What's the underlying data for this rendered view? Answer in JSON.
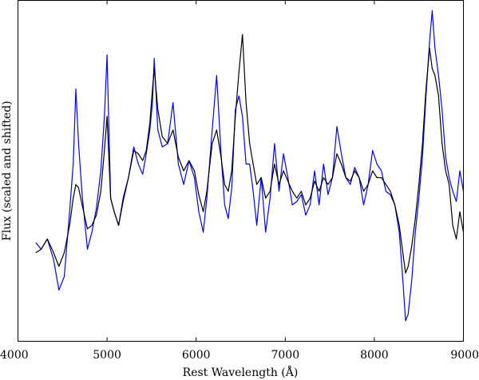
{
  "chart_data": {
    "type": "line",
    "title": "",
    "xlabel": "Rest Wavelength (Å)",
    "ylabel": "Flux (scaled and shifted)",
    "xlim": [
      4000,
      9000
    ],
    "ylim": [
      0,
      1
    ],
    "xticks": [
      4000,
      5000,
      6000,
      7000,
      8000,
      9000
    ],
    "yticks": [],
    "grid": false,
    "legend": "none",
    "colors": {
      "series_a": "#0000ff",
      "series_b": "#000000"
    },
    "series": [
      {
        "color": "#0000ff",
        "x": [
          4200,
          4260,
          4330,
          4400,
          4460,
          4520,
          4580,
          4620,
          4650,
          4680,
          4720,
          4780,
          4830,
          4880,
          4930,
          4970,
          5000,
          5040,
          5080,
          5130,
          5180,
          5240,
          5300,
          5350,
          5400,
          5440,
          5480,
          5510,
          5530,
          5570,
          5620,
          5680,
          5740,
          5800,
          5860,
          5920,
          5980,
          6030,
          6080,
          6120,
          6180,
          6230,
          6280,
          6320,
          6360,
          6400,
          6440,
          6480,
          6520,
          6560,
          6600,
          6640,
          6680,
          6730,
          6780,
          6830,
          6880,
          6930,
          6980,
          7030,
          7080,
          7130,
          7180,
          7230,
          7280,
          7330,
          7380,
          7430,
          7480,
          7530,
          7580,
          7630,
          7680,
          7730,
          7780,
          7830,
          7880,
          7930,
          7980,
          8030,
          8080,
          8130,
          8180,
          8230,
          8280,
          8320,
          8350,
          8380,
          8420,
          8460,
          8500,
          8540,
          8580,
          8620,
          8650,
          8680,
          8720,
          8760,
          8800,
          8840,
          8880,
          8920,
          8960,
          9000
        ],
        "y": [
          0.29,
          0.27,
          0.3,
          0.24,
          0.15,
          0.19,
          0.38,
          0.52,
          0.74,
          0.58,
          0.43,
          0.27,
          0.32,
          0.39,
          0.5,
          0.66,
          0.84,
          0.42,
          0.38,
          0.34,
          0.42,
          0.48,
          0.57,
          0.52,
          0.49,
          0.55,
          0.62,
          0.7,
          0.83,
          0.62,
          0.57,
          0.58,
          0.7,
          0.52,
          0.46,
          0.53,
          0.48,
          0.38,
          0.32,
          0.42,
          0.62,
          0.78,
          0.55,
          0.4,
          0.36,
          0.45,
          0.68,
          0.72,
          0.66,
          0.52,
          0.52,
          0.44,
          0.34,
          0.48,
          0.32,
          0.42,
          0.58,
          0.44,
          0.55,
          0.48,
          0.4,
          0.41,
          0.43,
          0.37,
          0.4,
          0.5,
          0.4,
          0.52,
          0.43,
          0.48,
          0.63,
          0.55,
          0.48,
          0.46,
          0.51,
          0.48,
          0.4,
          0.46,
          0.56,
          0.52,
          0.5,
          0.44,
          0.43,
          0.4,
          0.32,
          0.18,
          0.06,
          0.08,
          0.18,
          0.32,
          0.42,
          0.54,
          0.72,
          0.88,
          0.97,
          0.86,
          0.78,
          0.68,
          0.54,
          0.48,
          0.44,
          0.41,
          0.5,
          0.44
        ]
      },
      {
        "color": "#000000",
        "x": [
          4200,
          4260,
          4330,
          4400,
          4460,
          4520,
          4580,
          4620,
          4650,
          4680,
          4720,
          4780,
          4830,
          4880,
          4930,
          4970,
          5000,
          5040,
          5080,
          5130,
          5180,
          5240,
          5300,
          5350,
          5400,
          5440,
          5480,
          5510,
          5530,
          5570,
          5620,
          5680,
          5740,
          5800,
          5860,
          5920,
          5980,
          6030,
          6080,
          6120,
          6180,
          6230,
          6280,
          6320,
          6360,
          6400,
          6440,
          6480,
          6520,
          6560,
          6600,
          6640,
          6680,
          6730,
          6780,
          6830,
          6880,
          6930,
          6980,
          7030,
          7080,
          7130,
          7180,
          7230,
          7280,
          7330,
          7380,
          7430,
          7480,
          7530,
          7580,
          7630,
          7680,
          7730,
          7780,
          7830,
          7880,
          7930,
          7980,
          8030,
          8080,
          8130,
          8180,
          8230,
          8280,
          8320,
          8350,
          8380,
          8420,
          8460,
          8500,
          8540,
          8580,
          8620,
          8650,
          8680,
          8720,
          8760,
          8800,
          8840,
          8880,
          8920,
          8960,
          9000
        ],
        "y": [
          0.26,
          0.27,
          0.3,
          0.26,
          0.22,
          0.26,
          0.34,
          0.42,
          0.46,
          0.45,
          0.4,
          0.33,
          0.34,
          0.37,
          0.44,
          0.56,
          0.66,
          0.42,
          0.38,
          0.34,
          0.41,
          0.48,
          0.56,
          0.55,
          0.53,
          0.56,
          0.64,
          0.74,
          0.8,
          0.68,
          0.6,
          0.58,
          0.62,
          0.54,
          0.5,
          0.53,
          0.5,
          0.43,
          0.38,
          0.44,
          0.58,
          0.62,
          0.54,
          0.46,
          0.44,
          0.5,
          0.66,
          0.79,
          0.9,
          0.7,
          0.58,
          0.52,
          0.46,
          0.48,
          0.42,
          0.44,
          0.52,
          0.46,
          0.5,
          0.47,
          0.44,
          0.42,
          0.44,
          0.4,
          0.42,
          0.47,
          0.44,
          0.48,
          0.46,
          0.48,
          0.55,
          0.52,
          0.48,
          0.47,
          0.5,
          0.48,
          0.44,
          0.46,
          0.5,
          0.48,
          0.48,
          0.46,
          0.44,
          0.4,
          0.34,
          0.26,
          0.2,
          0.22,
          0.28,
          0.36,
          0.46,
          0.58,
          0.74,
          0.86,
          0.8,
          0.78,
          0.72,
          0.58,
          0.5,
          0.46,
          0.34,
          0.3,
          0.38,
          0.32
        ]
      }
    ]
  }
}
